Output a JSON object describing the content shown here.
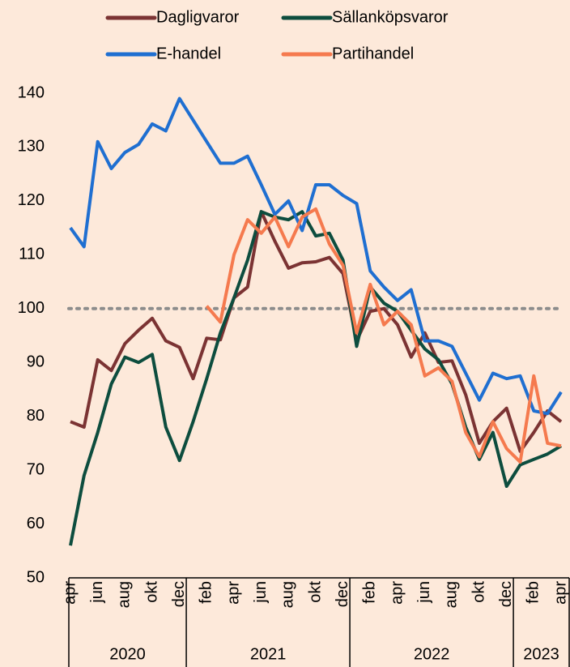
{
  "chart_data": {
    "type": "line",
    "categories": [
      "apr",
      null,
      "jun",
      null,
      "aug",
      null,
      "okt",
      null,
      "dec",
      null,
      "feb",
      null,
      "apr",
      null,
      "jun",
      null,
      "aug",
      null,
      "okt",
      null,
      "dec",
      null,
      "feb",
      null,
      "apr",
      null,
      "jun",
      null,
      "aug",
      null,
      "okt",
      null,
      "dec",
      null,
      "feb",
      null,
      "apr"
    ],
    "years": [
      {
        "label": "2020",
        "count": 9
      },
      {
        "label": "2021",
        "count": 12
      },
      {
        "label": "2022",
        "count": 12
      },
      {
        "label": "2023",
        "count": 4
      }
    ],
    "ylim": [
      50,
      140
    ],
    "yticks": [
      50,
      60,
      70,
      80,
      90,
      100,
      110,
      120,
      130,
      140
    ],
    "reference_line": 100,
    "series": [
      {
        "name": "Dagligvaror",
        "color": "#7b3333",
        "values": [
          79,
          78,
          90.5,
          88.5,
          93.5,
          96,
          98.2,
          94,
          92.8,
          87,
          94.5,
          94.2,
          102,
          104,
          118,
          112.5,
          107.5,
          108.5,
          108.7,
          109.5,
          106.5,
          94,
          99.5,
          100,
          97,
          91,
          95.5,
          90,
          90.3,
          84,
          75,
          79,
          81.5,
          73.5,
          77,
          81,
          79
        ]
      },
      {
        "name": "Sällanköpsvaror",
        "color": "#0d4d3e",
        "values": [
          56,
          69,
          77,
          86,
          91,
          90,
          91.5,
          78,
          71.8,
          79,
          87,
          95.5,
          102,
          109,
          118,
          117,
          116.5,
          118,
          113.5,
          114,
          109,
          93,
          104,
          101,
          99.5,
          96,
          92.5,
          90.5,
          86,
          78,
          72,
          77,
          67,
          71,
          72,
          73,
          74.5
        ]
      },
      {
        "name": "E-handel",
        "color": "#1f6fd1",
        "values": [
          115,
          111.5,
          131,
          126,
          129,
          130.5,
          134.3,
          133,
          139,
          135,
          131,
          127,
          127,
          128.3,
          123,
          117.5,
          120,
          114.5,
          123,
          123,
          121,
          119.5,
          107,
          104,
          101.5,
          103.5,
          94,
          94,
          93,
          88,
          83,
          88,
          87,
          87.5,
          81,
          80.5,
          84.5
        ]
      },
      {
        "name": "Partihandel",
        "color": "#f57a4e",
        "values": [
          null,
          null,
          null,
          null,
          null,
          null,
          null,
          null,
          null,
          null,
          100.5,
          97.5,
          110,
          116.5,
          114,
          117,
          111.5,
          117,
          118.5,
          112,
          108,
          95.5,
          104.5,
          97,
          99.5,
          97,
          87.5,
          89,
          86.5,
          77,
          72.5,
          79,
          74,
          71.5,
          87.5,
          75,
          74.5
        ]
      }
    ]
  }
}
